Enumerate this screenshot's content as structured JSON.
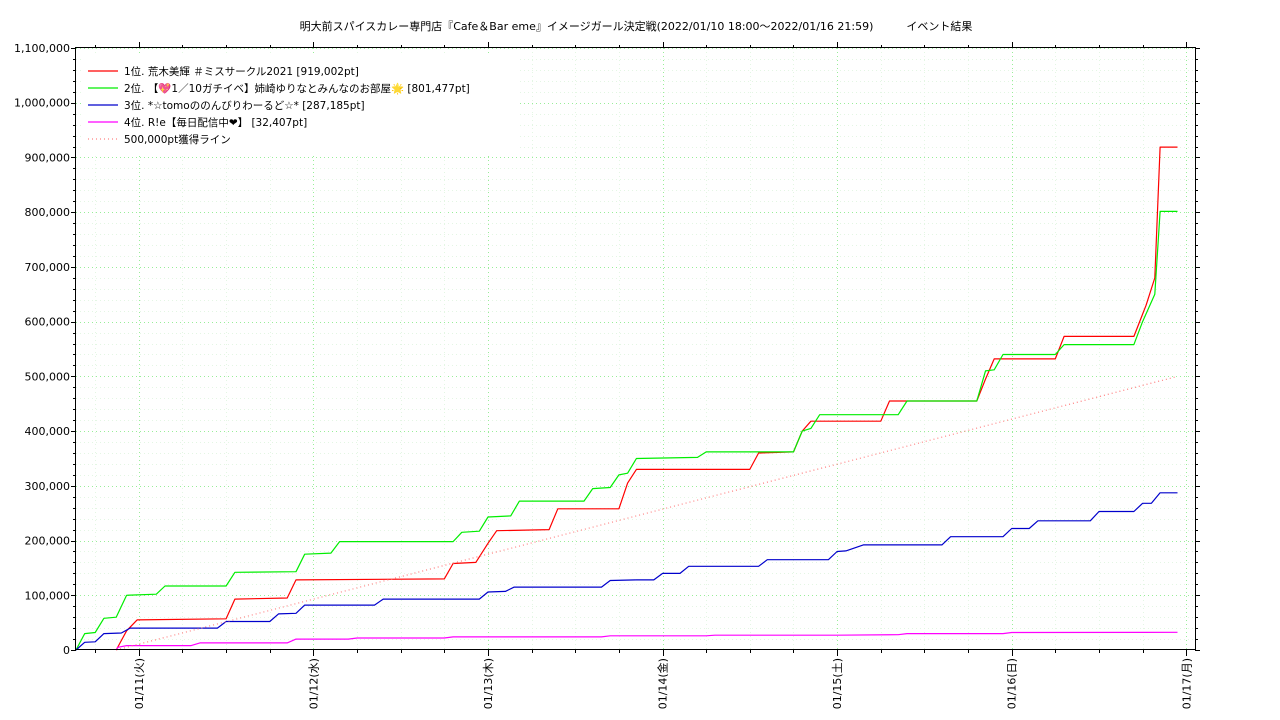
{
  "chart_data": {
    "type": "line",
    "title": "明大前スパイスカレー専門店『Cafe＆Bar eme』イメージガール決定戦(2022/01/10 18:00～2022/01/16 21:59)　　　イベント結果",
    "xlabel": "",
    "ylabel": "",
    "xlim": [
      -0.11,
      6.3
    ],
    "ylim": [
      0,
      1100000
    ],
    "grid": true,
    "legend_position": "top-left",
    "y_ticks": [
      {
        "value": 0,
        "label": "0"
      },
      {
        "value": 100000,
        "label": "100,000"
      },
      {
        "value": 200000,
        "label": "200,000"
      },
      {
        "value": 300000,
        "label": "300,000"
      },
      {
        "value": 400000,
        "label": "400,000"
      },
      {
        "value": 500000,
        "label": "500,000"
      },
      {
        "value": 600000,
        "label": "600,000"
      },
      {
        "value": 700000,
        "label": "700,000"
      },
      {
        "value": 800000,
        "label": "800,000"
      },
      {
        "value": 900000,
        "label": "900,000"
      },
      {
        "value": 1000000,
        "label": "1,000,000"
      },
      {
        "value": 1100000,
        "label": "1,100,000"
      }
    ],
    "x_ticks": [
      {
        "value": 0.25,
        "label": "01/11(火)"
      },
      {
        "value": 1.25,
        "label": "01/12(水)"
      },
      {
        "value": 2.25,
        "label": "01/13(木)"
      },
      {
        "value": 3.25,
        "label": "01/14(金)"
      },
      {
        "value": 4.25,
        "label": "01/15(土)"
      },
      {
        "value": 5.25,
        "label": "01/16(日)"
      },
      {
        "value": 6.25,
        "label": "01/17(月)"
      }
    ],
    "series": [
      {
        "name": "1位. 荒木美輝 ＃ミスサークル2021 [919,002pt]",
        "color": "#ff0000",
        "style": "solid",
        "points": [
          [
            0.12,
            0
          ],
          [
            0.18,
            35000
          ],
          [
            0.24,
            55000
          ],
          [
            0.75,
            57000
          ],
          [
            0.8,
            93000
          ],
          [
            1.1,
            95000
          ],
          [
            1.15,
            128000
          ],
          [
            2.0,
            130000
          ],
          [
            2.05,
            158000
          ],
          [
            2.18,
            160000
          ],
          [
            2.25,
            195000
          ],
          [
            2.3,
            218000
          ],
          [
            2.6,
            220000
          ],
          [
            2.65,
            258000
          ],
          [
            3.0,
            258000
          ],
          [
            3.05,
            305000
          ],
          [
            3.1,
            330000
          ],
          [
            3.75,
            330000
          ],
          [
            3.8,
            360000
          ],
          [
            4.0,
            362000
          ],
          [
            4.05,
            400000
          ],
          [
            4.1,
            418000
          ],
          [
            4.5,
            418000
          ],
          [
            4.55,
            455000
          ],
          [
            4.7,
            455000
          ],
          [
            5.05,
            455000
          ],
          [
            5.1,
            495000
          ],
          [
            5.15,
            532000
          ],
          [
            5.5,
            532000
          ],
          [
            5.55,
            573000
          ],
          [
            5.95,
            573000
          ],
          [
            6.02,
            630000
          ],
          [
            6.07,
            680000
          ],
          [
            6.1,
            919002
          ],
          [
            6.2,
            919002
          ]
        ]
      },
      {
        "name": "2位. 【💖1／10ガチイベ】姉崎ゆりなとみんなのお部屋🌟 [801,477pt]",
        "color": "#00ee00",
        "style": "solid",
        "points": [
          [
            -0.11,
            0
          ],
          [
            -0.06,
            30000
          ],
          [
            0.0,
            32000
          ],
          [
            0.05,
            58000
          ],
          [
            0.12,
            60000
          ],
          [
            0.18,
            100000
          ],
          [
            0.35,
            102000
          ],
          [
            0.4,
            117000
          ],
          [
            0.75,
            117000
          ],
          [
            0.8,
            142000
          ],
          [
            1.15,
            143000
          ],
          [
            1.2,
            175000
          ],
          [
            1.35,
            177000
          ],
          [
            1.4,
            198000
          ],
          [
            1.75,
            198000
          ],
          [
            2.05,
            198000
          ],
          [
            2.1,
            215000
          ],
          [
            2.2,
            217000
          ],
          [
            2.25,
            243000
          ],
          [
            2.38,
            245000
          ],
          [
            2.43,
            272000
          ],
          [
            2.6,
            272000
          ],
          [
            2.8,
            272000
          ],
          [
            2.85,
            295000
          ],
          [
            2.95,
            297000
          ],
          [
            3.0,
            320000
          ],
          [
            3.05,
            323000
          ],
          [
            3.1,
            350000
          ],
          [
            3.45,
            352000
          ],
          [
            3.5,
            362000
          ],
          [
            3.9,
            362000
          ],
          [
            4.0,
            362000
          ],
          [
            4.05,
            400000
          ],
          [
            4.1,
            405000
          ],
          [
            4.15,
            430000
          ],
          [
            4.5,
            430000
          ],
          [
            4.6,
            430000
          ],
          [
            4.65,
            455000
          ],
          [
            4.9,
            455000
          ],
          [
            5.05,
            455000
          ],
          [
            5.1,
            510000
          ],
          [
            5.15,
            512000
          ],
          [
            5.2,
            540000
          ],
          [
            5.5,
            540000
          ],
          [
            5.55,
            558000
          ],
          [
            5.95,
            558000
          ],
          [
            6.0,
            600000
          ],
          [
            6.07,
            650000
          ],
          [
            6.1,
            801477
          ],
          [
            6.2,
            801477
          ]
        ]
      },
      {
        "name": "3位. *☆tomoののんびりわーるど☆* [287,185pt]",
        "color": "#0000cc",
        "style": "solid",
        "points": [
          [
            -0.11,
            0
          ],
          [
            -0.06,
            14000
          ],
          [
            0.0,
            15000
          ],
          [
            0.05,
            30000
          ],
          [
            0.15,
            31000
          ],
          [
            0.2,
            40000
          ],
          [
            0.7,
            40000
          ],
          [
            0.75,
            52000
          ],
          [
            1.0,
            52000
          ],
          [
            1.05,
            66000
          ],
          [
            1.15,
            67000
          ],
          [
            1.2,
            82000
          ],
          [
            1.5,
            82000
          ],
          [
            1.6,
            82000
          ],
          [
            1.65,
            93000
          ],
          [
            1.95,
            93000
          ],
          [
            2.2,
            93000
          ],
          [
            2.25,
            106000
          ],
          [
            2.35,
            107000
          ],
          [
            2.4,
            115000
          ],
          [
            2.7,
            115000
          ],
          [
            2.9,
            115000
          ],
          [
            2.95,
            127000
          ],
          [
            3.1,
            128000
          ],
          [
            3.2,
            128000
          ],
          [
            3.25,
            140000
          ],
          [
            3.35,
            140000
          ],
          [
            3.4,
            153000
          ],
          [
            3.7,
            153000
          ],
          [
            3.8,
            153000
          ],
          [
            3.85,
            165000
          ],
          [
            4.0,
            165000
          ],
          [
            4.2,
            165000
          ],
          [
            4.25,
            180000
          ],
          [
            4.3,
            181000
          ],
          [
            4.4,
            192000
          ],
          [
            4.7,
            192000
          ],
          [
            4.85,
            192000
          ],
          [
            4.9,
            207000
          ],
          [
            5.2,
            207000
          ],
          [
            5.25,
            222000
          ],
          [
            5.35,
            222000
          ],
          [
            5.4,
            236000
          ],
          [
            5.65,
            236000
          ],
          [
            5.7,
            236000
          ],
          [
            5.75,
            253000
          ],
          [
            5.95,
            253000
          ],
          [
            6.0,
            268000
          ],
          [
            6.05,
            268000
          ],
          [
            6.1,
            287185
          ],
          [
            6.2,
            287185
          ]
        ]
      },
      {
        "name": "4位. R!e【毎日配信中❤】 [32,407pt]",
        "color": "#ff00ff",
        "style": "solid",
        "points": [
          [
            0.12,
            0
          ],
          [
            0.13,
            5000
          ],
          [
            0.18,
            8000
          ],
          [
            0.45,
            8000
          ],
          [
            0.55,
            8000
          ],
          [
            0.6,
            13000
          ],
          [
            1.1,
            13000
          ],
          [
            1.15,
            20000
          ],
          [
            1.45,
            20000
          ],
          [
            1.5,
            22000
          ],
          [
            2.0,
            22000
          ],
          [
            2.05,
            24000
          ],
          [
            2.9,
            24000
          ],
          [
            2.95,
            26000
          ],
          [
            3.5,
            26000
          ],
          [
            3.55,
            27000
          ],
          [
            4.25,
            27000
          ],
          [
            4.6,
            28000
          ],
          [
            4.65,
            30000
          ],
          [
            5.2,
            30000
          ],
          [
            5.25,
            32000
          ],
          [
            6.2,
            32407
          ]
        ]
      },
      {
        "name": "500,000pt獲得ライン",
        "color": "#ff8080",
        "style": "dotted",
        "points": [
          [
            0.12,
            0
          ],
          [
            6.2,
            500000
          ]
        ]
      }
    ]
  }
}
